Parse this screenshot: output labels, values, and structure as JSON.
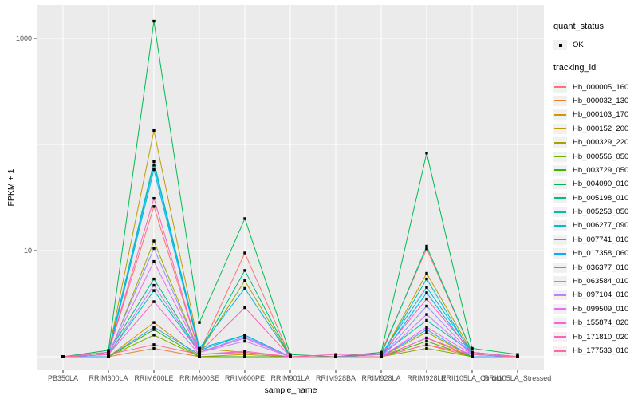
{
  "figure": {
    "panel_background": "#EBEBEB",
    "grid_color": "#FFFFFF",
    "point_color": "#000000",
    "axis_text_color": "#4D4D4D",
    "tick_color": "#333333",
    "ylabel": "FPKM + 1",
    "xlabel": "sample_name"
  },
  "legend": {
    "quant_title": "quant_status",
    "quant_items": [
      {
        "label": "OK"
      }
    ],
    "tracking_title": "tracking_id"
  },
  "chart_data": {
    "type": "line",
    "title": "",
    "xlabel": "sample_name",
    "ylabel": "FPKM + 1",
    "yscale": "log10",
    "ylim": [
      1,
      2000
    ],
    "grid": true,
    "legend_position": "right",
    "ytick_values": [
      10,
      1000
    ],
    "ytick_labels": [
      "10",
      "1000"
    ],
    "gridline_values": [
      1,
      10,
      100,
      1000
    ],
    "categories": [
      "PB350LA",
      "RRIM600LA",
      "RRIM600LE",
      "RRIM600SE",
      "RRIM600PE",
      "RRIM901LA",
      "RRIM928BA",
      "RRIM928LA",
      "RRIM928LE",
      "RRII105LA_Control",
      "RRII105LA_Stressed"
    ],
    "quant_status": "OK",
    "series": [
      {
        "name": "Hb_000005_160",
        "color": "#F8766D",
        "values": [
          1,
          1.1,
          26,
          1.1,
          9.5,
          1,
          1,
          1.1,
          10.4,
          1.1,
          1
        ]
      },
      {
        "name": "Hb_000032_130",
        "color": "#EA8331",
        "values": [
          1,
          1,
          1.2,
          1,
          1,
          1,
          1,
          1,
          1.3,
          1,
          1
        ]
      },
      {
        "name": "Hb_000103_170",
        "color": "#D89000",
        "values": [
          1,
          1,
          2.1,
          1,
          1.05,
          1,
          1,
          1,
          1.5,
          1,
          1
        ]
      },
      {
        "name": "Hb_000152_200",
        "color": "#C09B00",
        "values": [
          1,
          1.1,
          135,
          1.2,
          1.1,
          1,
          1,
          1,
          6.1,
          1.1,
          1
        ]
      },
      {
        "name": "Hb_000329_220",
        "color": "#A3A500",
        "values": [
          1,
          1,
          12.3,
          1.1,
          5.2,
          1,
          1,
          1,
          1.7,
          1,
          1
        ]
      },
      {
        "name": "Hb_000556_050",
        "color": "#7CAE00",
        "values": [
          1,
          1,
          1.6,
          1,
          1,
          1,
          1,
          1,
          1.2,
          1,
          1
        ]
      },
      {
        "name": "Hb_003729_050",
        "color": "#39B600",
        "values": [
          1,
          1,
          1.8,
          1,
          1,
          1,
          1,
          1,
          1.4,
          1,
          1
        ]
      },
      {
        "name": "Hb_004090_010",
        "color": "#00BB4E",
        "values": [
          1,
          1.15,
          1450,
          2.1,
          20,
          1.05,
          1,
          1.1,
          83,
          1.2,
          1.05
        ]
      },
      {
        "name": "Hb_005198_010",
        "color": "#00BF7D",
        "values": [
          1,
          1.1,
          5.4,
          1.1,
          6.5,
          1,
          1,
          1.05,
          11,
          1.1,
          1
        ]
      },
      {
        "name": "Hb_005253_050",
        "color": "#00C1A3",
        "values": [
          1,
          1.1,
          69,
          1.2,
          1.6,
          1,
          1,
          1.05,
          2.2,
          1.1,
          1
        ]
      },
      {
        "name": "Hb_006277_090",
        "color": "#00BFC4",
        "values": [
          1,
          1.05,
          4.2,
          1.1,
          1.5,
          1,
          1,
          1,
          5.4,
          1.05,
          1
        ]
      },
      {
        "name": "Hb_007741_010",
        "color": "#00BAE0",
        "values": [
          1,
          1.1,
          64,
          1.2,
          4.4,
          1,
          1,
          1.05,
          4.5,
          1.1,
          1
        ]
      },
      {
        "name": "Hb_017358_060",
        "color": "#00B0F6",
        "values": [
          1,
          1.05,
          58,
          1.15,
          1.6,
          1,
          1,
          1,
          4.0,
          1.05,
          1
        ]
      },
      {
        "name": "Hb_036377_010",
        "color": "#35A2FF",
        "values": [
          1,
          1,
          1.9,
          1.05,
          1.1,
          1,
          1,
          1,
          1.8,
          1,
          1
        ]
      },
      {
        "name": "Hb_063584_010",
        "color": "#9590FF",
        "values": [
          1,
          1.05,
          10.5,
          1.1,
          1.55,
          1,
          1,
          1,
          3.0,
          1.05,
          1
        ]
      },
      {
        "name": "Hb_097104_010",
        "color": "#C77CFF",
        "values": [
          1,
          1.05,
          4.7,
          1.1,
          1.4,
          1,
          1,
          1,
          2.5,
          1.05,
          1
        ]
      },
      {
        "name": "Hb_099509_010",
        "color": "#E76BF3",
        "values": [
          1,
          1.05,
          7.9,
          1.1,
          1.5,
          1,
          1,
          1,
          1.9,
          1.05,
          1
        ]
      },
      {
        "name": "Hb_155874_020",
        "color": "#FA62DB",
        "values": [
          1,
          1.05,
          3.3,
          1.05,
          1.13,
          1,
          1,
          1,
          1.5,
          1.05,
          1
        ]
      },
      {
        "name": "Hb_171810_020",
        "color": "#FF62BC",
        "values": [
          1,
          1.1,
          31,
          1.1,
          2.9,
          1,
          1.05,
          1.05,
          3.5,
          1.1,
          1
        ]
      },
      {
        "name": "Hb_177533_010",
        "color": "#FF6A98",
        "values": [
          1,
          1.05,
          1.3,
          1.05,
          1.1,
          1,
          1,
          1,
          1.3,
          1.05,
          1
        ]
      }
    ]
  }
}
